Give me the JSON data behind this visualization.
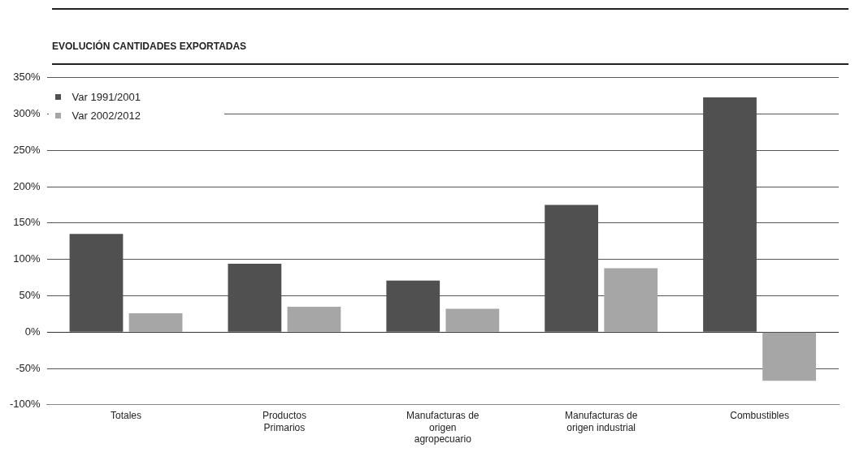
{
  "chart_data": {
    "type": "bar",
    "title": "EVOLUCIÓN CANTIDADES EXPORTADAS",
    "categories": [
      "Totales",
      "Productos Primarios",
      "Manufacturas de origen agropecuario",
      "Manufacturas de origen industrial",
      "Combustibles"
    ],
    "series": [
      {
        "name": "Var 1991/2001",
        "color": "#505050",
        "values": [
          135,
          94,
          71,
          175,
          323
        ]
      },
      {
        "name": "Var 2002/2012",
        "color": "#a6a6a6",
        "values": [
          26,
          35,
          32,
          88,
          -67
        ]
      }
    ],
    "ylim": [
      -100,
      350
    ],
    "yticks": [
      {
        "value": -100,
        "label": "-100%"
      },
      {
        "value": -50,
        "label": "-50%"
      },
      {
        "value": 0,
        "label": "0%"
      },
      {
        "value": 50,
        "label": "50%"
      },
      {
        "value": 100,
        "label": "100%"
      },
      {
        "value": 150,
        "label": "150%"
      },
      {
        "value": 200,
        "label": "200%"
      },
      {
        "value": 250,
        "label": "250%"
      },
      {
        "value": 300,
        "label": "300%"
      },
      {
        "value": 350,
        "label": "350%"
      }
    ],
    "grid": "y",
    "legend": "top left"
  }
}
